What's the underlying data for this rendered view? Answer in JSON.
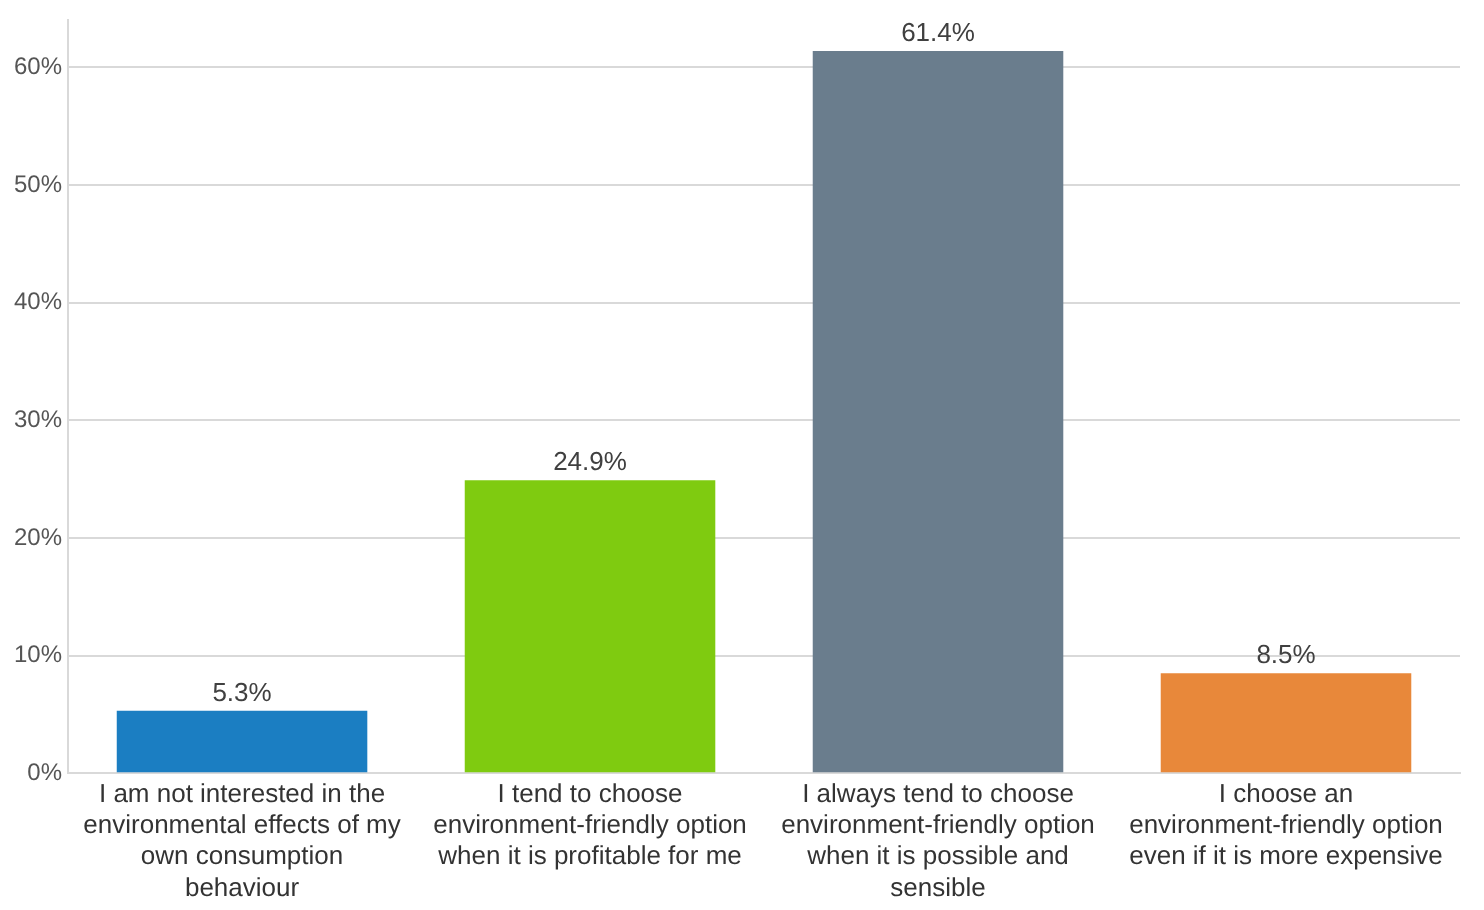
{
  "chart_data": {
    "type": "bar",
    "categories": [
      "I am not interested in the environmental effects of my own consumption behaviour",
      "I tend to choose environment-friendly option when it is profitable for me",
      "I always tend to choose environment-friendly option when it is possible and sensible",
      "I choose an environment-friendly option even if it is more expensive"
    ],
    "values": [
      5.3,
      24.9,
      61.4,
      8.5
    ],
    "colors": [
      "#1b7ec2",
      "#7fcb10",
      "#6a7d8d",
      "#e8883a"
    ],
    "value_labels": [
      "5.3%",
      "24.9%",
      "61.4%",
      "8.5%"
    ],
    "ylim": [
      0,
      64
    ],
    "yticks": [
      {
        "value": 0,
        "label": "0%"
      },
      {
        "value": 10,
        "label": "10%"
      },
      {
        "value": 20,
        "label": "20%"
      },
      {
        "value": 30,
        "label": "30%"
      },
      {
        "value": 40,
        "label": "40%"
      },
      {
        "value": 50,
        "label": "50%"
      },
      {
        "value": 60,
        "label": "60%"
      }
    ],
    "grid": "y",
    "legend": false
  }
}
